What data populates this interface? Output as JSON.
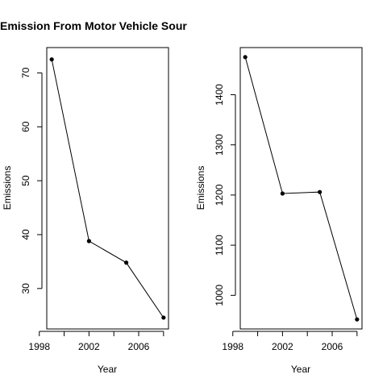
{
  "chart_data": [
    {
      "type": "line",
      "title": "Emission From Motor Vehicle Sour",
      "xlabel": "Year",
      "ylabel": "Emissions",
      "x": [
        1999,
        2002,
        2005,
        2008
      ],
      "series": [
        {
          "values": [
            72.5,
            38.8,
            34.8,
            24.6
          ]
        }
      ],
      "xlim": [
        1998.6,
        2008.4
      ],
      "ylim": [
        22.5,
        74.7
      ],
      "xticks": [
        "1998",
        "2002",
        "2006"
      ],
      "yticks": [
        "30",
        "40",
        "50",
        "60",
        "70"
      ],
      "grid": false,
      "color": "#000000"
    },
    {
      "type": "line",
      "title": "",
      "xlabel": "Year",
      "ylabel": "Emissions",
      "x": [
        1999,
        2002,
        2005,
        2008
      ],
      "series": [
        {
          "values": [
            1475,
            1203,
            1206,
            952
          ]
        }
      ],
      "xlim": [
        1998.6,
        2008.4
      ],
      "ylim": [
        933,
        1494
      ],
      "xticks": [
        "1998",
        "2002",
        "2006"
      ],
      "yticks": [
        "1000",
        "1100",
        "1200",
        "1300",
        "1400"
      ],
      "grid": false,
      "color": "#000000"
    }
  ]
}
